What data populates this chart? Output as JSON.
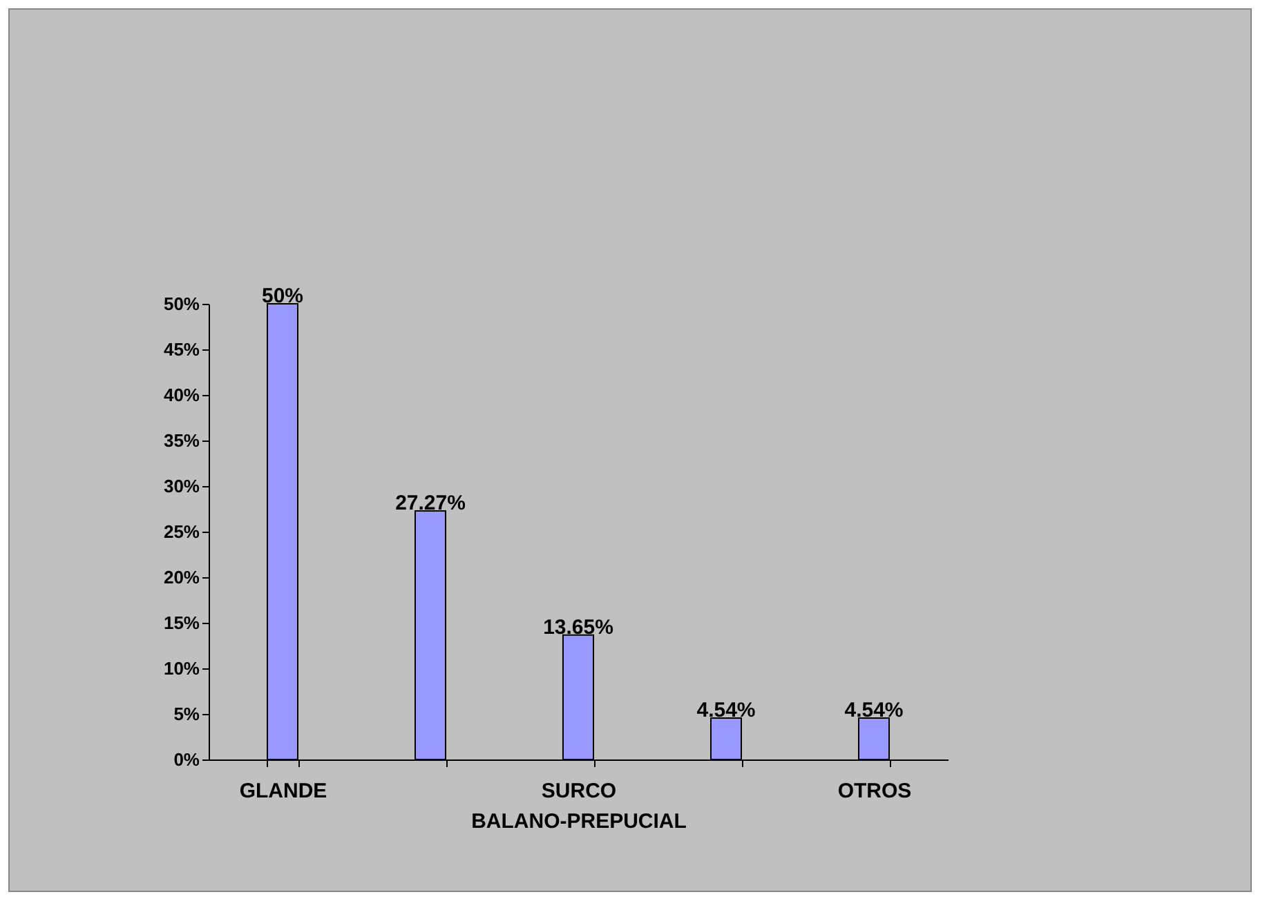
{
  "chart_data": {
    "type": "bar",
    "categories": [
      "GLANDE",
      null,
      "SURCO BALANO-PREPUCIAL",
      null,
      "OTROS"
    ],
    "values": [
      50,
      27.27,
      13.65,
      4.54,
      4.54
    ],
    "value_labels": [
      "50%",
      "27.27%",
      "13.65%",
      "4.54%",
      "4.54%"
    ],
    "color": "#9999ff",
    "ylim": [
      0,
      50
    ],
    "yticks": [
      {
        "value": 0,
        "label": "0%"
      },
      {
        "value": 5,
        "label": "5%"
      },
      {
        "value": 10,
        "label": "10%"
      },
      {
        "value": 15,
        "label": "15%"
      },
      {
        "value": 20,
        "label": "20%"
      },
      {
        "value": 25,
        "label": "25%"
      },
      {
        "value": 30,
        "label": "30%"
      },
      {
        "value": 35,
        "label": "35%"
      },
      {
        "value": 40,
        "label": "40%"
      },
      {
        "value": 45,
        "label": "45%"
      },
      {
        "value": 50,
        "label": "50%"
      }
    ],
    "grid": false
  }
}
